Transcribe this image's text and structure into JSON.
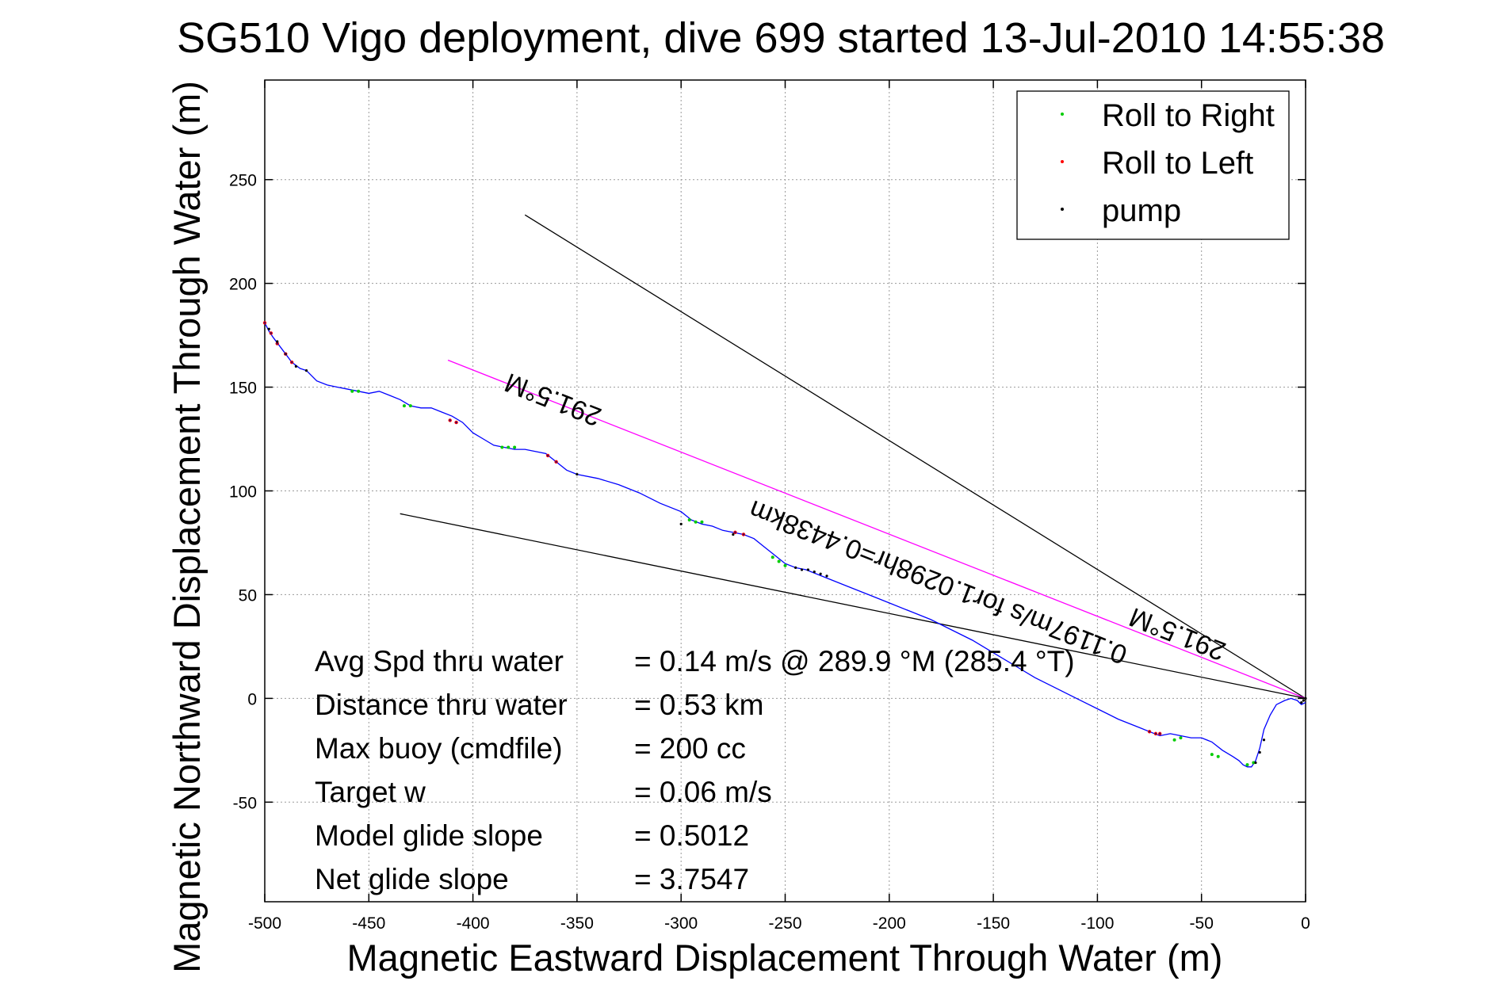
{
  "chart_data": {
    "type": "line",
    "title": "SG510 Vigo deployment, dive 699 started 13-Jul-2010 14:55:38",
    "xlabel": "Magnetic Eastward Displacement Through Water (m)",
    "ylabel": "Magnetic Northward Displacement Through Water (m)",
    "xlim": [
      -500,
      0
    ],
    "ylim": [
      -98,
      298
    ],
    "x_ticks": [
      -500,
      -450,
      -400,
      -350,
      -300,
      -250,
      -200,
      -150,
      -100,
      -50,
      0
    ],
    "y_ticks": [
      250,
      200,
      150,
      100,
      50,
      0,
      -50
    ],
    "grid": true,
    "legend_position": "top-right",
    "legend": [
      {
        "label": "Roll to Right",
        "color": "#00cc00"
      },
      {
        "label": "Roll to Left",
        "color": "#ff0000"
      },
      {
        "label": "pump",
        "color": "#000000"
      }
    ],
    "track_color": "#0000ff",
    "track": {
      "x": [
        0,
        -2,
        -4,
        -7,
        -10,
        -14,
        -17,
        -20,
        -22,
        -24,
        -26,
        -28,
        -30,
        -32,
        -35,
        -40,
        -45,
        -50,
        -55,
        -60,
        -65,
        -70,
        -75,
        -80,
        -90,
        -100,
        -110,
        -120,
        -130,
        -140,
        -150,
        -160,
        -170,
        -180,
        -190,
        -200,
        -210,
        -220,
        -230,
        -240,
        -245,
        -250,
        -255,
        -260,
        -265,
        -270,
        -275,
        -280,
        -285,
        -290,
        -295,
        -300,
        -310,
        -320,
        -330,
        -340,
        -350,
        -355,
        -360,
        -365,
        -370,
        -375,
        -380,
        -385,
        -390,
        -395,
        -400,
        -405,
        -410,
        -415,
        -420,
        -425,
        -430,
        -435,
        -440,
        -445,
        -450,
        -455,
        -460,
        -465,
        -470,
        -475,
        -480,
        -483,
        -487,
        -490,
        -493,
        -496,
        -498,
        -500
      ],
      "y": [
        -2,
        -3,
        -1,
        0,
        -1,
        -3,
        -8,
        -15,
        -24,
        -30,
        -33,
        -33,
        -32,
        -30,
        -28,
        -25,
        -21,
        -19,
        -19,
        -18,
        -17,
        -18,
        -16,
        -14,
        -10,
        -5,
        0,
        5,
        10,
        16,
        22,
        28,
        33,
        38,
        42,
        46,
        50,
        54,
        58,
        62,
        63,
        65,
        69,
        73,
        77,
        79,
        80,
        81,
        83,
        84,
        86,
        90,
        94,
        99,
        103,
        106,
        108,
        110,
        114,
        118,
        119,
        120,
        120,
        121,
        122,
        125,
        128,
        133,
        136,
        138,
        140,
        140,
        141,
        144,
        146,
        148,
        147,
        148,
        149,
        150,
        151,
        153,
        158,
        159,
        162,
        166,
        170,
        174,
        177,
        181
      ]
    },
    "markers": {
      "roll_right": {
        "x": [
          -250,
          -253,
          -256,
          -290,
          -293,
          -296,
          -380,
          -383,
          -386,
          -430,
          -433,
          -455,
          -458,
          -60,
          -63,
          -45,
          -42,
          -28,
          -25
        ],
        "y": [
          64,
          66,
          68,
          85,
          85,
          86,
          121,
          121,
          121,
          141,
          141,
          148,
          148,
          -19,
          -20,
          -27,
          -28,
          -32,
          -31
        ]
      },
      "roll_left": {
        "x": [
          -75,
          -72,
          -70,
          -270,
          -274,
          -360,
          -364,
          -408,
          -411,
          -487,
          -490,
          -494,
          -497,
          -500
        ],
        "y": [
          -16,
          -17,
          -17,
          79,
          80,
          114,
          117,
          133,
          134,
          162,
          166,
          171,
          176,
          181
        ],
        "halo": 1
      },
      "pump": {
        "x": [
          -230,
          -233,
          -236,
          -239,
          -242,
          -245,
          -24,
          -22,
          -20,
          -2,
          -1,
          0,
          -480,
          -485,
          -490,
          -494,
          -498,
          -350,
          -300,
          -275
        ],
        "y": [
          59,
          60,
          61,
          62,
          62,
          63,
          -31,
          -26,
          -20,
          -2,
          -1,
          0,
          158,
          160,
          166,
          172,
          178,
          108,
          84,
          79
        ]
      }
    },
    "reference_lines": [
      {
        "x": [
          0,
          -375
        ],
        "y": [
          0,
          233
        ],
        "color": "#000000"
      },
      {
        "x": [
          0,
          -412
        ],
        "y": [
          0,
          163
        ],
        "color": "#ff00ff"
      },
      {
        "x": [
          0,
          -435
        ],
        "y": [
          0,
          89
        ],
        "color": "#000000"
      }
    ],
    "annotations": [
      {
        "text": "291.5°M",
        "x": -360,
        "y": 148,
        "rotation": 201.5
      },
      {
        "text": "291.5°M",
        "x": -60,
        "y": 35,
        "rotation": 201.5
      },
      {
        "text": "0.1197m/s for1.0298hr=0.4438km",
        "x": -175,
        "y": 60,
        "rotation": 201.5
      }
    ],
    "stats": [
      {
        "label": "Avg Spd thru water",
        "value": "=  0.14 m/s @ 289.9 °M (285.4 °T)"
      },
      {
        "label": "Distance thru water",
        "value": "=  0.53 km"
      },
      {
        "label": "Max buoy (cmdfile)",
        "value": "= 200 cc"
      },
      {
        "label": "Target w",
        "value": "= 0.06 m/s"
      },
      {
        "label": "Model glide slope",
        "value": "= 0.5012"
      },
      {
        "label": "Net glide slope",
        "value": "= 3.7547"
      }
    ]
  }
}
